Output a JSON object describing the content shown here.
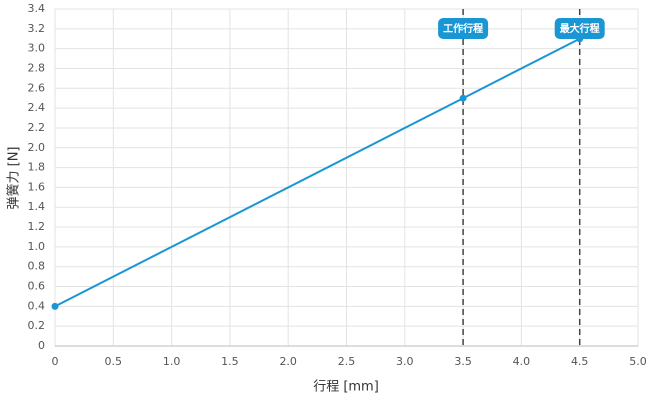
{
  "chart_data": {
    "type": "line",
    "xlabel": "行程 [mm]",
    "ylabel": "弹簧力 [N]",
    "x": [
      0,
      3.5,
      4.5
    ],
    "values": [
      0.4,
      2.5,
      3.1
    ],
    "color": "#1a96d4",
    "xlim": [
      0,
      5
    ],
    "xticks": [
      0,
      0.5,
      {
        "value": 1,
        "label": "1.0"
      },
      1.5,
      {
        "value": 2,
        "label": "2.0"
      },
      2.5,
      {
        "value": 3,
        "label": "3.0"
      },
      3.5,
      {
        "value": 4,
        "label": "4.0"
      },
      4.5,
      {
        "value": 5,
        "label": "5.0"
      }
    ],
    "ylim": [
      0,
      3.4
    ],
    "yticks": [
      0,
      0.2,
      0.4,
      0.6,
      0.8,
      {
        "value": 1,
        "label": "1.0"
      },
      1.2,
      1.4,
      1.6,
      1.8,
      {
        "value": 2,
        "label": "2.0"
      },
      2.2,
      2.4,
      2.6,
      2.8,
      {
        "value": 3,
        "label": "3.0"
      },
      3.2,
      3.4
    ],
    "grid": true,
    "annotations": [
      {
        "x": 3.5,
        "text": "工作行程"
      },
      {
        "x": 4.5,
        "text": "最大行程"
      }
    ]
  }
}
